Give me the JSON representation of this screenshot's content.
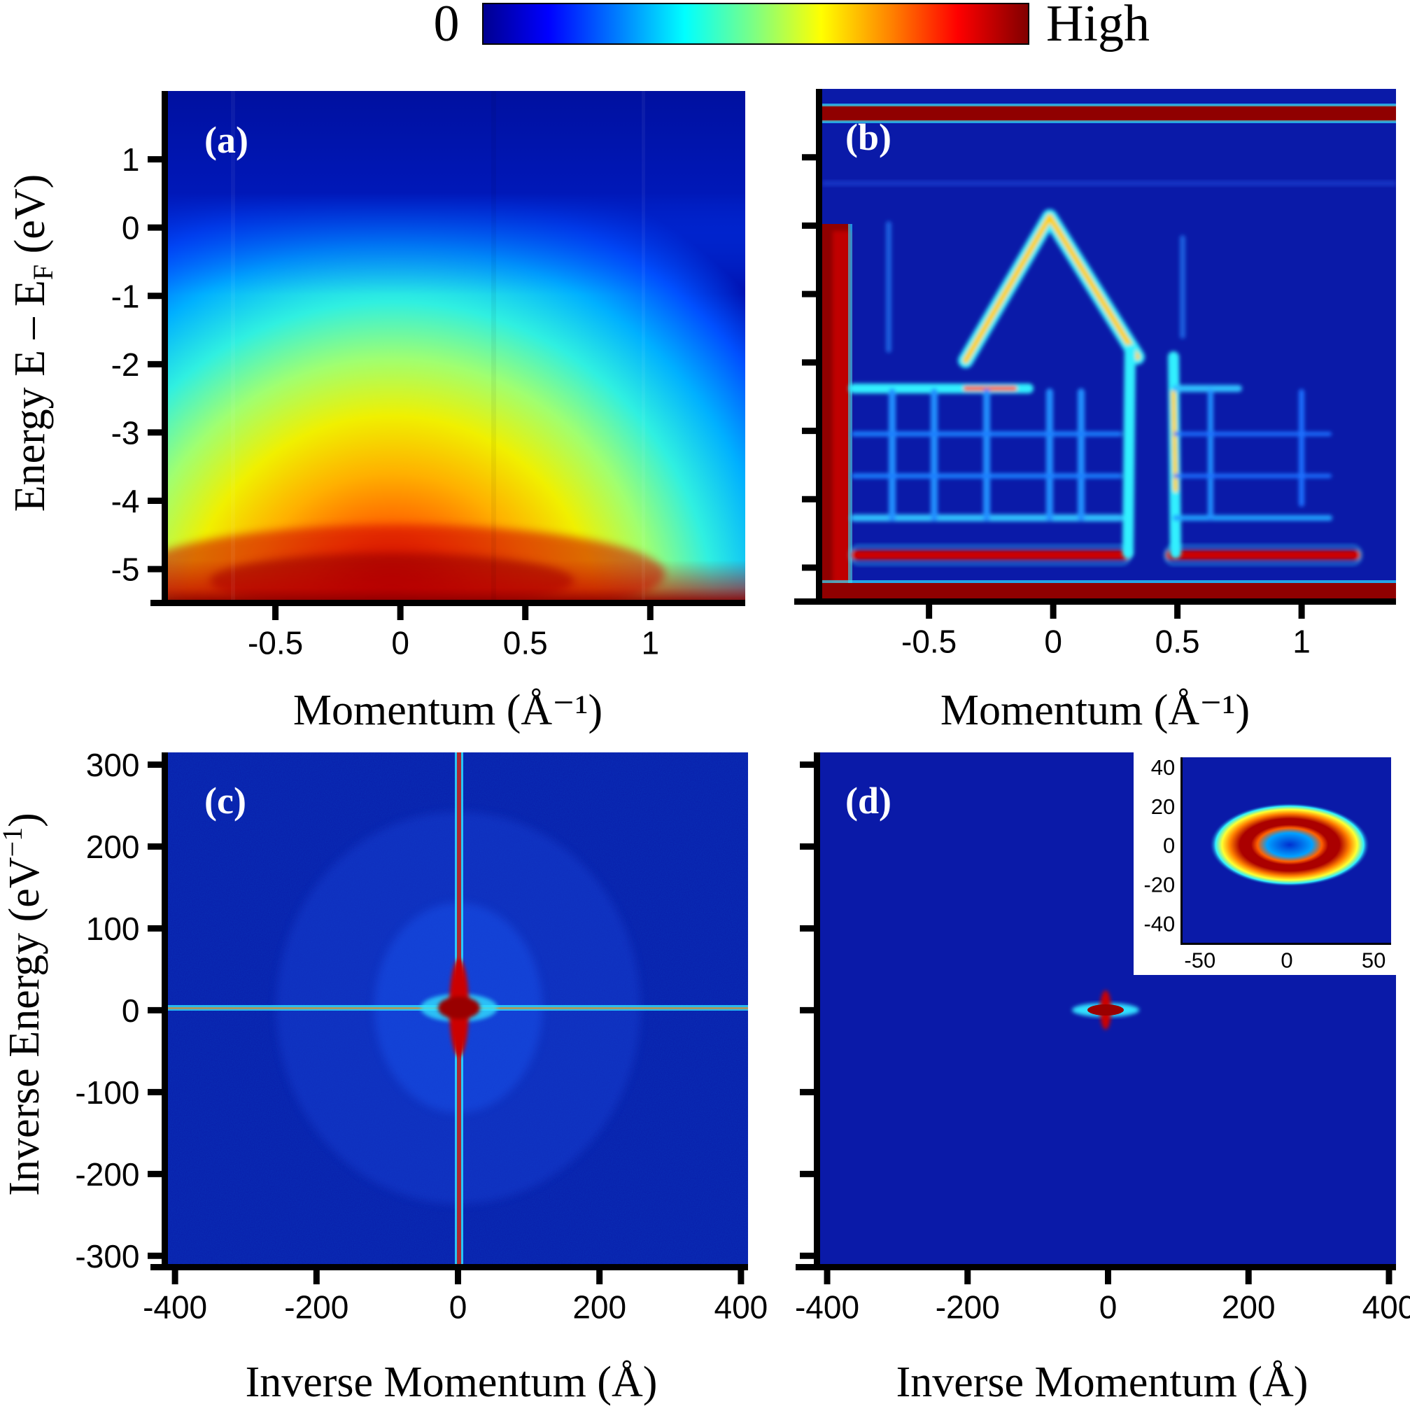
{
  "colorbar": {
    "min_label": "0",
    "max_label": "High",
    "stops": [
      "#00008f",
      "#0000ff",
      "#0080ff",
      "#00ffff",
      "#80ff80",
      "#ffff00",
      "#ff8000",
      "#ff0000",
      "#800000"
    ]
  },
  "chart_data": [
    {
      "id": "a",
      "panel_label": "(a)",
      "type": "heatmap",
      "description_kind": "ARPES intensity map",
      "xlabel": "Momentum (Å⁻¹)",
      "ylabel": "Energy  E – E",
      "ylabel_sub": "F",
      "ylabel_tail": " (eV)",
      "xlim": [
        -0.93,
        1.38
      ],
      "ylim": [
        -5.45,
        2.0
      ],
      "xticks": [
        -0.5,
        0,
        0.5,
        1
      ],
      "xtick_labels": [
        "-0.5",
        "0",
        "0.5",
        "1"
      ],
      "yticks": [
        1,
        0,
        -1,
        -2,
        -3,
        -4,
        -5
      ],
      "ytick_labels": [
        "1",
        "0",
        "-1",
        "-2",
        "-3",
        "-4",
        "-5"
      ]
    },
    {
      "id": "b",
      "panel_label": "(b)",
      "type": "heatmap",
      "xlabel": "Momentum (Å⁻¹)",
      "xlim": [
        -0.93,
        1.38
      ],
      "ylim": [
        -5.45,
        2.0
      ],
      "xticks": [
        -0.5,
        0,
        0.5,
        1
      ],
      "xtick_labels": [
        "-0.5",
        "0",
        "0.5",
        "1"
      ],
      "yticks": [
        1,
        0,
        -1,
        -2,
        -3,
        -4,
        -5
      ],
      "ytick_labels": []
    },
    {
      "id": "c",
      "panel_label": "(c)",
      "type": "heatmap",
      "xlabel": "Inverse Momentum (Å)",
      "ylabel": "Inverse Energy  (eV",
      "ylabel_sup": "−1",
      "ylabel_tail": ")",
      "xlim": [
        -410,
        410
      ],
      "ylim": [
        -310,
        315
      ],
      "xticks": [
        -400,
        -200,
        0,
        200,
        400
      ],
      "xtick_labels": [
        "-400",
        "-200",
        "0",
        "200",
        "400"
      ],
      "yticks": [
        300,
        200,
        100,
        0,
        -100,
        -200,
        -300
      ],
      "ytick_labels": [
        "300",
        "200",
        "100",
        "0",
        "-100",
        "-200",
        "-300"
      ]
    },
    {
      "id": "d",
      "panel_label": "(d)",
      "type": "heatmap",
      "xlabel": "Inverse Momentum (Å)",
      "xlim": [
        -410,
        410
      ],
      "ylim": [
        -310,
        315
      ],
      "xticks": [
        -400,
        -200,
        0,
        200,
        400
      ],
      "xtick_labels": [
        "-400",
        "-200",
        "0",
        "200",
        "400"
      ],
      "yticks": [
        300,
        200,
        100,
        0,
        -100,
        -200,
        -300
      ],
      "ytick_labels": [],
      "inset": {
        "type": "heatmap",
        "xlim": [
          -60,
          60
        ],
        "ylim": [
          -50,
          45
        ],
        "xticks": [
          -50,
          0,
          50
        ],
        "xtick_labels": [
          "-50",
          "0",
          "50"
        ],
        "yticks": [
          40,
          20,
          0,
          -20,
          -40
        ],
        "ytick_labels": [
          "40",
          "20",
          "0",
          "-20",
          "-40"
        ]
      }
    }
  ]
}
